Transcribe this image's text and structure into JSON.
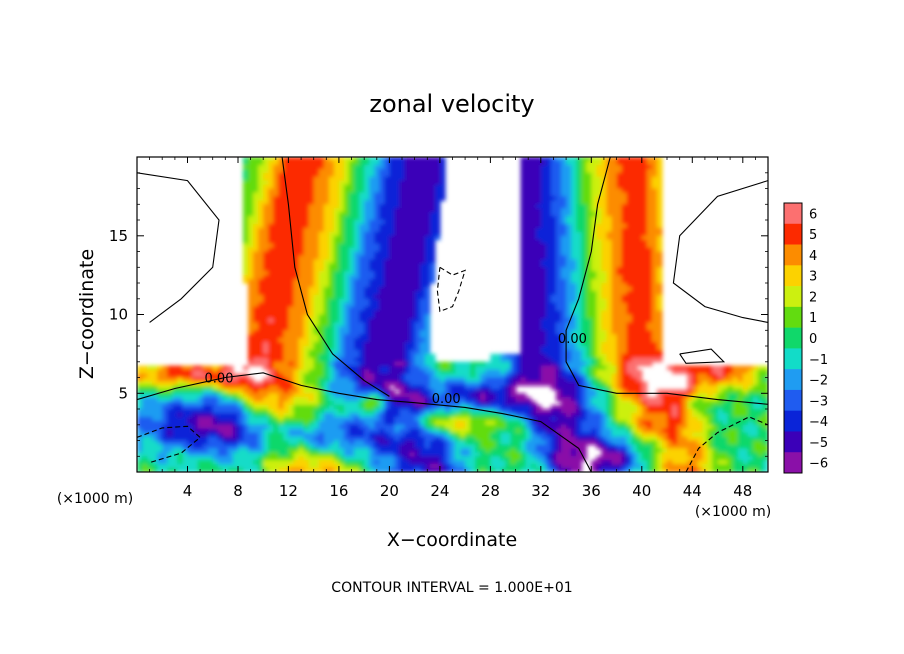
{
  "chart_data": {
    "type": "heatmap",
    "title": "zonal velocity",
    "xlabel": "X−coordinate",
    "ylabel": "Z−coordinate",
    "x_unit_left": "(×1000 m)",
    "x_unit_right": "(×1000 m)",
    "xlim": [
      0,
      50
    ],
    "ylim": [
      0,
      20
    ],
    "x_ticks": [
      4,
      8,
      12,
      16,
      20,
      24,
      28,
      32,
      36,
      40,
      44,
      48
    ],
    "y_ticks": [
      5,
      10,
      15
    ],
    "colorbar": {
      "ticks": [
        6,
        5,
        4,
        3,
        2,
        1,
        0,
        -1,
        -2,
        -3,
        -4,
        -5,
        -6
      ],
      "tick_labels": [
        "6",
        "5",
        "4",
        "3",
        "2",
        "1",
        "0",
        "−1",
        "−2",
        "−3",
        "−4",
        "−5",
        "−6"
      ],
      "range": [
        -6.5,
        6.5
      ],
      "blank_beyond": "values outside the range are shown white"
    },
    "contour_labels": [
      {
        "text": "0.00",
        "x": 6.5,
        "z": 6.0
      },
      {
        "text": "0.00",
        "x": 24.5,
        "z": 4.7
      },
      {
        "text": "0.00",
        "x": 34.5,
        "z": 8.5
      }
    ],
    "note": "CONTOUR INTERVAL = 1.000E+01",
    "grid": false,
    "legend": "colorbar right"
  }
}
